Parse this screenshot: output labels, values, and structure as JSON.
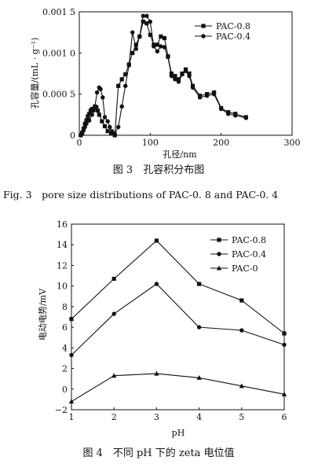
{
  "figure1": {
    "caption_cn": "图 3　孔容积分布图",
    "caption_en": "Fig. 3　pore size distributions of PAC-0. 8 and PAC-0. 4",
    "chart_data": {
      "type": "line",
      "xlabel": "孔径/nm",
      "ylabel": "孔容量/(mL · g⁻¹)",
      "xlim": [
        0,
        300
      ],
      "ylim": [
        0,
        0.0015
      ],
      "xticks": [
        0,
        100,
        200,
        300
      ],
      "xtick_labels": [
        "0",
        "100",
        "200",
        "300"
      ],
      "yticks": [
        0,
        0.0005,
        0.001,
        0.0015
      ],
      "ytick_labels": [
        "0",
        "0.000 5",
        "0.001 0",
        "0.001 5"
      ],
      "legend_position": "top-right",
      "series": [
        {
          "name": "PAC-0.8",
          "marker": "square",
          "points": [
            [
              2,
              0
            ],
            [
              4,
              3e-05
            ],
            [
              6,
              8e-05
            ],
            [
              8,
              0.00014
            ],
            [
              10,
              0.00018
            ],
            [
              12,
              0.00023
            ],
            [
              14,
              0.00026
            ],
            [
              16,
              0.0003
            ],
            [
              18,
              0.00032
            ],
            [
              20,
              0.00031
            ],
            [
              22,
              0.00035
            ],
            [
              24,
              0.00034
            ],
            [
              26,
              0.0003
            ],
            [
              28,
              0.00025
            ],
            [
              32,
              0.00017
            ],
            [
              36,
              0.00011
            ],
            [
              40,
              5e-05
            ],
            [
              45,
              2e-05
            ],
            [
              50,
              0
            ],
            [
              55,
              0.0006
            ],
            [
              60,
              0.00068
            ],
            [
              65,
              0.00074
            ],
            [
              70,
              0.00086
            ],
            [
              75,
              0.001
            ],
            [
              80,
              0.0011
            ],
            [
              85,
              0.0012
            ],
            [
              90,
              0.00138
            ],
            [
              95,
              0.00136
            ],
            [
              100,
              0.00122
            ],
            [
              105,
              0.0011
            ],
            [
              110,
              0.0011
            ],
            [
              115,
              0.0012
            ],
            [
              120,
              0.00118
            ],
            [
              125,
              0.00096
            ],
            [
              130,
              0.00075
            ],
            [
              135,
              0.00072
            ],
            [
              140,
              0.00068
            ],
            [
              145,
              0.00075
            ],
            [
              150,
              0.0008
            ],
            [
              155,
              0.00075
            ],
            [
              160,
              0.0006
            ],
            [
              170,
              0.00048
            ],
            [
              180,
              0.0005
            ],
            [
              190,
              0.00052
            ],
            [
              200,
              0.00033
            ],
            [
              210,
              0.00028
            ],
            [
              220,
              0.00026
            ],
            [
              235,
              0.00022
            ]
          ]
        },
        {
          "name": "PAC-0.4",
          "marker": "circle",
          "points": [
            [
              2,
              0
            ],
            [
              4,
              2e-05
            ],
            [
              6,
              6e-05
            ],
            [
              8,
              0.0001
            ],
            [
              10,
              0.00014
            ],
            [
              14,
              0.00018
            ],
            [
              18,
              0.00025
            ],
            [
              20,
              0.0003
            ],
            [
              22,
              0.00035
            ],
            [
              25,
              0.00052
            ],
            [
              28,
              0.00058
            ],
            [
              30,
              0.00056
            ],
            [
              33,
              0.00046
            ],
            [
              36,
              0.00022
            ],
            [
              40,
              0.00017
            ],
            [
              43,
              0.0001
            ],
            [
              46,
              5e-05
            ],
            [
              50,
              2e-05
            ],
            [
              55,
              0.0001
            ],
            [
              60,
              0.00035
            ],
            [
              65,
              0.0006
            ],
            [
              70,
              0.00085
            ],
            [
              75,
              0.00125
            ],
            [
              80,
              0.00105
            ],
            [
              85,
              0.0012
            ],
            [
              90,
              0.00145
            ],
            [
              95,
              0.00145
            ],
            [
              100,
              0.00138
            ],
            [
              105,
              0.00108
            ],
            [
              110,
              0.00102
            ],
            [
              115,
              0.00108
            ],
            [
              120,
              0.00107
            ],
            [
              125,
              0.00095
            ],
            [
              130,
              0.00072
            ],
            [
              135,
              0.00068
            ],
            [
              140,
              0.00065
            ],
            [
              145,
              0.00074
            ],
            [
              150,
              0.00078
            ],
            [
              155,
              0.00072
            ],
            [
              160,
              0.00058
            ],
            [
              170,
              0.00046
            ],
            [
              180,
              0.00048
            ],
            [
              190,
              0.0005
            ],
            [
              200,
              0.00032
            ],
            [
              210,
              0.00026
            ],
            [
              220,
              0.00024
            ],
            [
              235,
              0.00021
            ]
          ]
        }
      ]
    }
  },
  "figure2": {
    "caption_cn": "图 4　不同 pH 下的 zeta 电位值",
    "chart_data": {
      "type": "line",
      "xlabel": "pH",
      "ylabel": "电动电势/mV",
      "xlim": [
        1,
        6
      ],
      "ylim": [
        -2,
        16
      ],
      "xticks": [
        1,
        2,
        3,
        4,
        5,
        6
      ],
      "xtick_labels": [
        "1",
        "2",
        "3",
        "4",
        "5",
        "6"
      ],
      "yticks": [
        -2,
        0,
        2,
        4,
        6,
        8,
        10,
        12,
        14,
        16
      ],
      "ytick_labels": [
        "−2",
        "0",
        "2",
        "4",
        "6",
        "8",
        "10",
        "12",
        "14",
        "16"
      ],
      "legend_position": "top-right",
      "x": [
        1,
        2,
        3,
        4,
        5,
        6
      ],
      "series": [
        {
          "name": "PAC-0.8",
          "marker": "square",
          "values": [
            6.8,
            10.7,
            14.4,
            10.2,
            8.6,
            5.4
          ]
        },
        {
          "name": "PAC-0.4",
          "marker": "circle",
          "values": [
            3.3,
            7.3,
            10.2,
            6.0,
            5.7,
            4.3
          ]
        },
        {
          "name": "PAC-0",
          "marker": "triangle",
          "values": [
            -1.2,
            1.3,
            1.5,
            1.1,
            0.3,
            -0.5
          ]
        }
      ]
    }
  }
}
